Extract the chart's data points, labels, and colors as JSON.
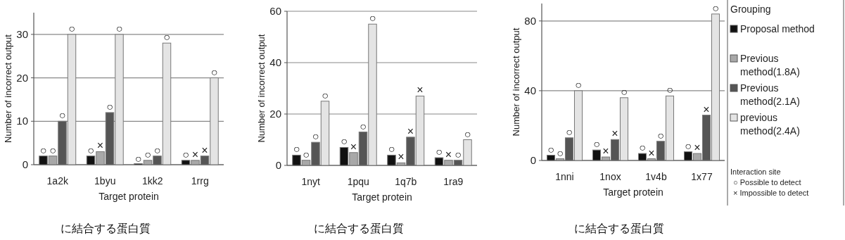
{
  "chart_data": [
    {
      "type": "bar",
      "title": "に結合する蛋白質",
      "xlabel": "Target protein",
      "ylabel": "Number of incorrect output",
      "categories": [
        "1a2k",
        "1byu",
        "1kk2",
        "1rrg"
      ],
      "ylim": [
        0,
        35
      ],
      "yticks": [
        0,
        10,
        20,
        30
      ],
      "grid": "y",
      "legend": false,
      "series": [
        {
          "color": "#111111",
          "values": [
            2,
            2,
            0,
            1
          ],
          "value_labels": [
            "○",
            "○",
            "○",
            "○"
          ]
        },
        {
          "color": "#a8a8a8",
          "values": [
            2,
            3,
            1,
            1
          ],
          "value_labels": [
            "○",
            "×",
            "○",
            "×"
          ]
        },
        {
          "color": "#555555",
          "values": [
            10,
            12,
            2,
            2
          ],
          "value_labels": [
            "○",
            "○",
            "○",
            "×"
          ]
        },
        {
          "color": "#e4e4e4",
          "values": [
            30,
            30,
            28,
            20
          ],
          "value_labels": [
            "○",
            "○",
            "○",
            "○"
          ]
        }
      ]
    },
    {
      "type": "bar",
      "title": "に結合する蛋白質",
      "xlabel": "Target protein",
      "ylabel": "Number of incorrect output",
      "categories": [
        "1nyt",
        "1pqu",
        "1q7b",
        "1ra9"
      ],
      "ylim": [
        0,
        60
      ],
      "yticks": [
        0,
        20,
        40,
        60
      ],
      "grid": "y",
      "legend": false,
      "series": [
        {
          "color": "#111111",
          "values": [
            4,
            7,
            4,
            3
          ],
          "value_labels": [
            "○",
            "○",
            "○",
            "○"
          ]
        },
        {
          "color": "#a8a8a8",
          "values": [
            2,
            5,
            1,
            2
          ],
          "value_labels": [
            "○",
            "×",
            "×",
            "×"
          ]
        },
        {
          "color": "#555555",
          "values": [
            9,
            13,
            11,
            2
          ],
          "value_labels": [
            "○",
            "○",
            "×",
            "○"
          ]
        },
        {
          "color": "#e4e4e4",
          "values": [
            25,
            55,
            27,
            10
          ],
          "value_labels": [
            "○",
            "○",
            "×",
            "○"
          ]
        }
      ]
    },
    {
      "type": "bar",
      "title": "に結合する蛋白質",
      "xlabel": "Target protein",
      "ylabel": "Number of incorrect output",
      "legend_title": "Grouping",
      "categories": [
        "1nni",
        "1nox",
        "1v4b",
        "1x77"
      ],
      "ylim": [
        0,
        90
      ],
      "yticks": [
        0,
        40,
        80
      ],
      "grid": "y",
      "legend": "right",
      "annotations": [
        "Interaction site",
        "○ Possible to detect",
        "× Impossible to detect"
      ],
      "series": [
        {
          "name": "Proposal method",
          "color": "#111111",
          "values": [
            3,
            6,
            4,
            5
          ],
          "value_labels": [
            "○",
            "○",
            "○",
            "○"
          ]
        },
        {
          "name": "Previous method(1.8A)",
          "color": "#a8a8a8",
          "values": [
            1,
            2,
            1,
            4
          ],
          "value_labels": [
            "○",
            "×",
            "×",
            "×"
          ]
        },
        {
          "name": "Previous method(2.1A)",
          "color": "#555555",
          "values": [
            13,
            12,
            11,
            26
          ],
          "value_labels": [
            "○",
            "×",
            "○",
            "×"
          ]
        },
        {
          "name": "previous method(2.4A)",
          "color": "#e4e4e4",
          "values": [
            40,
            36,
            37,
            84
          ],
          "value_labels": [
            "○",
            "○",
            "○",
            "○"
          ]
        }
      ]
    }
  ]
}
